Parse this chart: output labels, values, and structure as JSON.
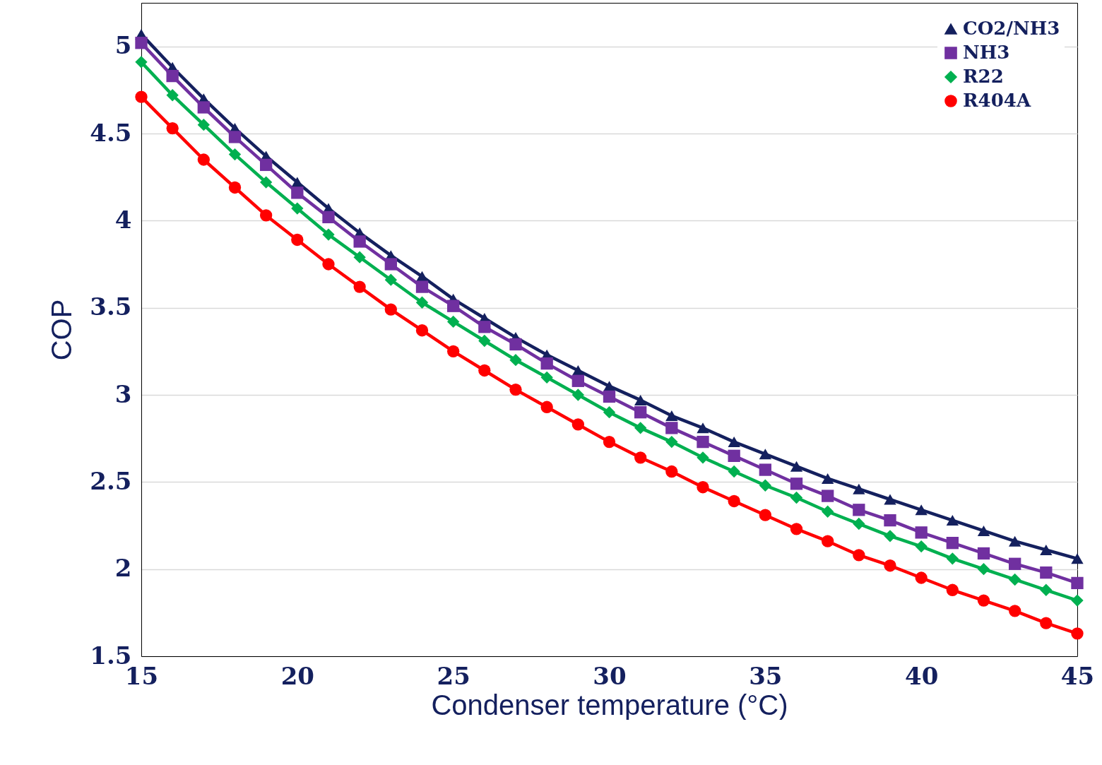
{
  "chart_data": {
    "type": "line",
    "xlabel": "Condenser temperature (°C)",
    "ylabel": "COP",
    "x": [
      15,
      16,
      17,
      18,
      19,
      20,
      21,
      22,
      23,
      24,
      25,
      26,
      27,
      28,
      29,
      30,
      31,
      32,
      33,
      34,
      35,
      36,
      37,
      38,
      39,
      40,
      41,
      42,
      43,
      44,
      45
    ],
    "series": [
      {
        "name": "CO2/NH3",
        "color": "#14205e",
        "marker": "triangle",
        "values": [
          5.07,
          4.88,
          4.7,
          4.53,
          4.37,
          4.22,
          4.07,
          3.93,
          3.8,
          3.68,
          3.55,
          3.44,
          3.33,
          3.23,
          3.14,
          3.05,
          2.97,
          2.88,
          2.81,
          2.73,
          2.66,
          2.59,
          2.52,
          2.46,
          2.4,
          2.34,
          2.28,
          2.22,
          2.16,
          2.11,
          2.06
        ]
      },
      {
        "name": "NH3",
        "color": "#7030a0",
        "marker": "square",
        "values": [
          5.02,
          4.83,
          4.65,
          4.48,
          4.32,
          4.16,
          4.02,
          3.88,
          3.75,
          3.62,
          3.51,
          3.39,
          3.29,
          3.18,
          3.08,
          2.99,
          2.9,
          2.81,
          2.73,
          2.65,
          2.57,
          2.49,
          2.42,
          2.34,
          2.28,
          2.21,
          2.15,
          2.09,
          2.03,
          1.98,
          1.92
        ]
      },
      {
        "name": "R22",
        "color": "#00b050",
        "marker": "diamond",
        "values": [
          4.91,
          4.72,
          4.55,
          4.38,
          4.22,
          4.07,
          3.92,
          3.79,
          3.66,
          3.53,
          3.42,
          3.31,
          3.2,
          3.1,
          3.0,
          2.9,
          2.81,
          2.73,
          2.64,
          2.56,
          2.48,
          2.41,
          2.33,
          2.26,
          2.19,
          2.13,
          2.06,
          2.0,
          1.94,
          1.88,
          1.82
        ]
      },
      {
        "name": "R404A",
        "color": "#ff0000",
        "marker": "circle",
        "values": [
          4.71,
          4.53,
          4.35,
          4.19,
          4.03,
          3.89,
          3.75,
          3.62,
          3.49,
          3.37,
          3.25,
          3.14,
          3.03,
          2.93,
          2.83,
          2.73,
          2.64,
          2.56,
          2.47,
          2.39,
          2.31,
          2.23,
          2.16,
          2.08,
          2.02,
          1.95,
          1.88,
          1.82,
          1.76,
          1.69,
          1.63
        ]
      }
    ],
    "xlim": [
      15,
      45
    ],
    "xticks": [
      15,
      20,
      25,
      30,
      35,
      40,
      45
    ],
    "ylim": [
      1.5,
      5.25
    ],
    "yticks": [
      1.5,
      2,
      2.5,
      3,
      3.5,
      4,
      4.5,
      5
    ],
    "grid": "y",
    "legend": "top right",
    "line_style": "solid"
  }
}
